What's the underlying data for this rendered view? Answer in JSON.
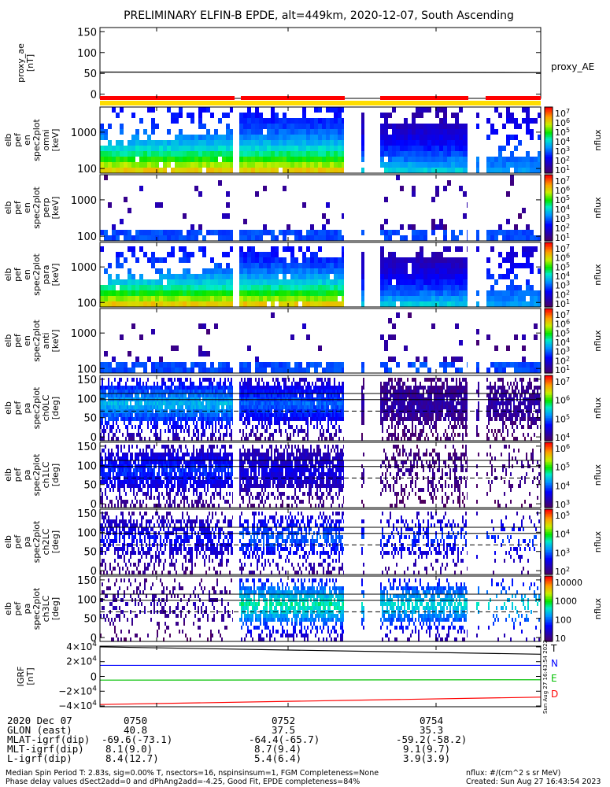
{
  "chart_data": {
    "type": "heatmap",
    "title": "PRELIMINARY ELFIN-B EPDE, alt=449km, 2020-12-07, South Ascending",
    "panels": [
      {
        "kind": "line",
        "ylabel": [
          "proxy_ae",
          "[nT]"
        ],
        "yticks": [
          "150",
          "100",
          "50",
          "0"
        ],
        "yrange": [
          -10,
          160
        ],
        "series": [
          {
            "name": "proxy_AE",
            "color": "#000000",
            "values": [
              53,
              52
            ]
          }
        ]
      },
      {
        "kind": "spec_energy",
        "ylabel": [
          "elb",
          "pef",
          "en",
          "spec2plot",
          "omni",
          "[keV]"
        ],
        "yticks": [
          "1000",
          "100"
        ],
        "cbar_label": "nflux",
        "cbar_ticks": [
          "10^7",
          "10^6",
          "10^5",
          "10^4",
          "10^3",
          "10^2",
          "10^1"
        ]
      },
      {
        "kind": "spec_energy",
        "ylabel": [
          "elb",
          "pef",
          "en",
          "spec2plot",
          "perp",
          "[keV]"
        ],
        "yticks": [
          "1000",
          "100"
        ],
        "cbar_label": "nflux",
        "cbar_ticks": [
          "10^7",
          "10^6",
          "10^5",
          "10^4",
          "10^3",
          "10^2",
          "10^1"
        ]
      },
      {
        "kind": "spec_energy",
        "ylabel": [
          "elb",
          "pef",
          "en",
          "spec2plot",
          "para",
          "[keV]"
        ],
        "yticks": [
          "1000",
          "100"
        ],
        "cbar_label": "nflux",
        "cbar_ticks": [
          "10^7",
          "10^6",
          "10^5",
          "10^4",
          "10^3",
          "10^2",
          "10^1"
        ]
      },
      {
        "kind": "spec_energy",
        "ylabel": [
          "elb",
          "pef",
          "en",
          "spec2plot",
          "anti",
          "[keV]"
        ],
        "yticks": [
          "1000",
          "100"
        ],
        "cbar_label": "nflux",
        "cbar_ticks": [
          "10^7",
          "10^6",
          "10^5",
          "10^4",
          "10^3",
          "10^2",
          "10^1"
        ]
      },
      {
        "kind": "spec_pa",
        "ylabel": [
          "elb",
          "pef",
          "pa",
          "spec2plot",
          "ch0LC",
          "[deg]"
        ],
        "yticks": [
          "150",
          "100",
          "50",
          "0"
        ],
        "cbar_label": "nflux",
        "cbar_ticks": [
          "10^7",
          "10^6",
          "10^5",
          "10^4"
        ]
      },
      {
        "kind": "spec_pa",
        "ylabel": [
          "elb",
          "pef",
          "pa",
          "spec2plot",
          "ch1LC",
          "[deg]"
        ],
        "yticks": [
          "150",
          "100",
          "50",
          "0"
        ],
        "cbar_label": "nflux",
        "cbar_ticks": [
          "10^6",
          "10^5",
          "10^4",
          "10^3"
        ]
      },
      {
        "kind": "spec_pa",
        "ylabel": [
          "elb",
          "pef",
          "pa",
          "spec2plot",
          "ch2LC",
          "[deg]"
        ],
        "yticks": [
          "150",
          "100",
          "50",
          "0"
        ],
        "cbar_label": "nflux",
        "cbar_ticks": [
          "10^5",
          "10^4",
          "10^3",
          "10^2"
        ]
      },
      {
        "kind": "spec_pa",
        "ylabel": [
          "elb",
          "pef",
          "pa",
          "spec2plot",
          "ch3LC",
          "[deg]"
        ],
        "yticks": [
          "150",
          "100",
          "50",
          "0"
        ],
        "cbar_label": "nflux",
        "cbar_ticks": [
          "10000",
          "1000",
          "100",
          "10"
        ]
      },
      {
        "kind": "line",
        "ylabel": [
          "IGRF",
          "[nT]"
        ],
        "yticks": [
          "4×10^4",
          "2×10^4",
          "0",
          "−2×10^4",
          "−4×10^4"
        ],
        "yrange": [
          -41000,
          41000
        ],
        "side_note": "Sun Aug 27 16:43:54 2023",
        "series": [
          {
            "name": "T",
            "color": "#000000",
            "values": [
              40000,
              30000
            ]
          },
          {
            "name": "N",
            "color": "#0000ff",
            "values": [
              15000,
              15000
            ]
          },
          {
            "name": "E",
            "color": "#00c000",
            "values": [
              -5000,
              -4500
            ]
          },
          {
            "name": "D",
            "color": "#ff0000",
            "values": [
              -38000,
              -28000
            ]
          }
        ]
      }
    ],
    "time_ticks": [
      "0750",
      "0752",
      "0754"
    ],
    "footer_rows": [
      {
        "label": "2020 Dec 07",
        "values": [
          "0750",
          "0752",
          "0754"
        ]
      },
      {
        "label": "GLON (east)",
        "values": [
          "40.8",
          "37.5",
          "35.3"
        ]
      },
      {
        "label": "MLAT-igrf(dip)",
        "values": [
          "-69.6(-73.1)",
          "-64.4(-65.7)",
          "-59.2(-58.2)"
        ]
      },
      {
        "label": "MLT-igrf(dip)",
        "values": [
          "8.1(9.0)",
          "8.7(9.4)",
          "9.1(9.7)"
        ]
      },
      {
        "label": "L-igrf(dip)",
        "values": [
          "8.4(12.7)",
          "5.4(6.4)",
          "3.9(3.9)"
        ]
      }
    ],
    "notes": [
      "Median Spin Period T: 2.83s, sig=0.00% T, nsectors=16, nspinsinsum=1, FGM Completeness=None",
      "Phase delay values dSect2add=0 and dPhAng2add=-4.25, Good Fit, EPDE completeness=84%"
    ],
    "units_note": "nflux: #/(cm^2 s sr MeV)",
    "created": "Created: Sun Aug 27 16:43:54 2023"
  }
}
